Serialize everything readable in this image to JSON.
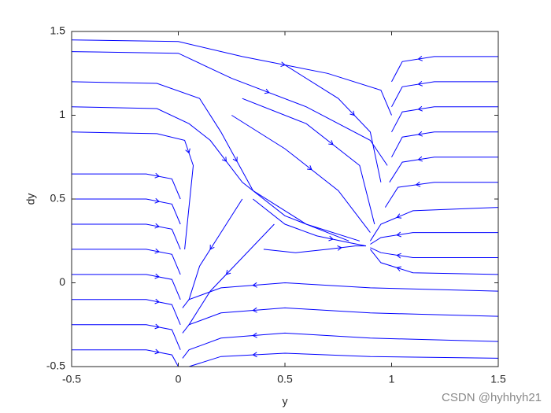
{
  "chart_data": {
    "type": "streamlines",
    "xlabel": "y",
    "ylabel": "dy",
    "xlim": [
      -0.5,
      1.5
    ],
    "ylim": [
      -0.5,
      1.5
    ],
    "xticks": [
      -0.5,
      0,
      0.5,
      1,
      1.5
    ],
    "yticks": [
      -0.5,
      0,
      0.5,
      1,
      1.5
    ],
    "color": "#0000ff",
    "series": [
      {
        "x": [
          -0.5,
          -0.15,
          -0.03,
          0.01
        ],
        "y": [
          0.65,
          0.65,
          0.62,
          0.5
        ]
      },
      {
        "x": [
          -0.5,
          -0.15,
          -0.03,
          0.01
        ],
        "y": [
          0.5,
          0.5,
          0.47,
          0.35
        ]
      },
      {
        "x": [
          -0.5,
          -0.15,
          -0.03,
          0.01
        ],
        "y": [
          0.35,
          0.35,
          0.32,
          0.2
        ]
      },
      {
        "x": [
          -0.5,
          -0.15,
          -0.03,
          0.01
        ],
        "y": [
          0.2,
          0.2,
          0.17,
          0.05
        ]
      },
      {
        "x": [
          -0.5,
          -0.15,
          -0.03,
          0.01
        ],
        "y": [
          0.05,
          0.05,
          0.02,
          -0.1
        ]
      },
      {
        "x": [
          -0.5,
          -0.15,
          -0.03,
          0.01
        ],
        "y": [
          -0.1,
          -0.1,
          -0.13,
          -0.25
        ]
      },
      {
        "x": [
          -0.5,
          -0.15,
          -0.03,
          0.01
        ],
        "y": [
          -0.25,
          -0.25,
          -0.28,
          -0.4
        ]
      },
      {
        "x": [
          -0.5,
          -0.15,
          -0.03,
          0.0
        ],
        "y": [
          -0.4,
          -0.4,
          -0.43,
          -0.5
        ]
      },
      {
        "x": [
          1.5,
          0.9,
          0.5,
          0.2,
          0.05,
          0.02
        ],
        "y": [
          -0.05,
          -0.03,
          0.0,
          -0.03,
          -0.1,
          -0.15
        ]
      },
      {
        "x": [
          1.5,
          0.9,
          0.5,
          0.2,
          0.05,
          0.02
        ],
        "y": [
          -0.2,
          -0.18,
          -0.15,
          -0.18,
          -0.25,
          -0.3
        ]
      },
      {
        "x": [
          1.5,
          0.9,
          0.5,
          0.2,
          0.05,
          0.02
        ],
        "y": [
          -0.35,
          -0.33,
          -0.3,
          -0.33,
          -0.4,
          -0.45
        ]
      },
      {
        "x": [
          1.5,
          0.9,
          0.5,
          0.2,
          0.05
        ],
        "y": [
          -0.45,
          -0.44,
          -0.42,
          -0.44,
          -0.5
        ]
      },
      {
        "x": [
          1.5,
          1.2,
          1.05,
          1.0
        ],
        "y": [
          1.35,
          1.35,
          1.32,
          1.2
        ]
      },
      {
        "x": [
          1.5,
          1.2,
          1.05,
          1.0
        ],
        "y": [
          1.2,
          1.2,
          1.17,
          1.05
        ]
      },
      {
        "x": [
          1.5,
          1.2,
          1.05,
          1.0
        ],
        "y": [
          1.05,
          1.05,
          1.02,
          0.9
        ]
      },
      {
        "x": [
          1.5,
          1.2,
          1.05,
          1.0
        ],
        "y": [
          0.9,
          0.9,
          0.87,
          0.75
        ]
      },
      {
        "x": [
          1.5,
          1.2,
          1.05,
          0.99
        ],
        "y": [
          0.75,
          0.75,
          0.72,
          0.6
        ]
      },
      {
        "x": [
          1.5,
          1.2,
          1.03,
          0.97
        ],
        "y": [
          0.6,
          0.6,
          0.57,
          0.45
        ]
      },
      {
        "x": [
          1.5,
          1.1,
          0.95,
          0.9
        ],
        "y": [
          0.45,
          0.43,
          0.35,
          0.25
        ]
      },
      {
        "x": [
          1.5,
          1.1,
          0.95,
          0.9
        ],
        "y": [
          0.3,
          0.3,
          0.27,
          0.23
        ]
      },
      {
        "x": [
          1.5,
          1.1,
          0.95,
          0.9
        ],
        "y": [
          0.15,
          0.15,
          0.18,
          0.21
        ]
      },
      {
        "x": [
          1.5,
          1.1,
          0.95,
          0.9
        ],
        "y": [
          0.05,
          0.06,
          0.12,
          0.2
        ]
      },
      {
        "x": [
          -0.5,
          0.0,
          0.3,
          0.7,
          0.95,
          1.0
        ],
        "y": [
          1.45,
          1.44,
          1.35,
          1.25,
          1.15,
          1.0
        ]
      },
      {
        "x": [
          -0.5,
          0.0,
          0.25,
          0.6,
          0.9,
          0.98
        ],
        "y": [
          1.38,
          1.37,
          1.22,
          1.05,
          0.85,
          0.7
        ]
      },
      {
        "x": [
          -0.5,
          -0.1,
          0.1,
          0.2,
          0.35,
          0.6,
          0.85
        ],
        "y": [
          1.2,
          1.19,
          1.1,
          0.9,
          0.55,
          0.35,
          0.25
        ]
      },
      {
        "x": [
          -0.5,
          -0.1,
          0.05,
          0.15,
          0.3,
          0.5,
          0.8
        ],
        "y": [
          1.05,
          1.04,
          0.95,
          0.85,
          0.6,
          0.4,
          0.25
        ]
      },
      {
        "x": [
          -0.5,
          -0.1,
          0.03,
          0.07,
          0.03
        ],
        "y": [
          0.9,
          0.89,
          0.85,
          0.7,
          0.2
        ]
      },
      {
        "x": [
          0.25,
          0.5,
          0.75,
          0.9
        ],
        "y": [
          1.0,
          0.8,
          0.55,
          0.3
        ]
      },
      {
        "x": [
          0.3,
          0.6,
          0.85,
          0.92
        ],
        "y": [
          1.1,
          0.95,
          0.7,
          0.35
        ]
      },
      {
        "x": [
          0.5,
          0.75,
          0.9,
          0.95
        ],
        "y": [
          1.3,
          1.1,
          0.9,
          0.6
        ]
      },
      {
        "x": [
          0.35,
          0.5,
          0.65,
          0.8,
          0.88
        ],
        "y": [
          0.5,
          0.35,
          0.28,
          0.24,
          0.22
        ]
      },
      {
        "x": [
          0.4,
          0.55,
          0.7,
          0.83,
          0.88
        ],
        "y": [
          0.2,
          0.18,
          0.2,
          0.22,
          0.22
        ]
      },
      {
        "x": [
          0.3,
          0.2,
          0.1,
          0.05
        ],
        "y": [
          0.5,
          0.3,
          0.1,
          -0.1
        ]
      },
      {
        "x": [
          0.45,
          0.3,
          0.15,
          0.05
        ],
        "y": [
          0.35,
          0.15,
          -0.05,
          -0.25
        ]
      }
    ],
    "watermark": "CSDN @hyhhyh21"
  }
}
